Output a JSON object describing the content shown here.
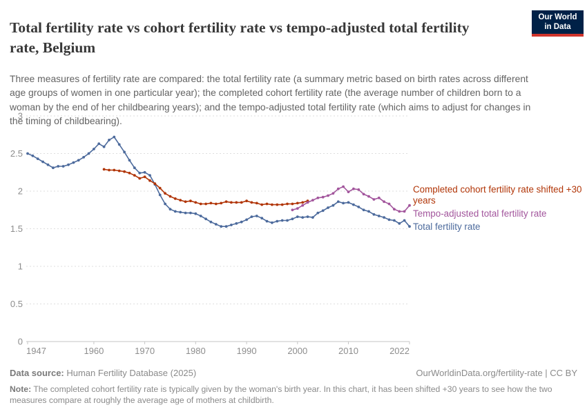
{
  "header": {
    "title": "Total fertility rate vs cohort fertility rate vs tempo-adjusted total fertility rate, Belgium",
    "subtitle": "Three measures of fertility rate are compared: the total fertility rate (a summary metric based on birth rates across different age groups of women in one particular year); the completed cohort fertility rate (the average number of children born to a woman by the end of her childbearing years); and the tempo-adjusted total fertility rate (which aims to adjust for changes in the timing of childbearing).",
    "logo": {
      "line1": "Our World",
      "line2": "in Data",
      "bg_color": "#002147",
      "bar_color": "#D0342C"
    }
  },
  "chart_data": {
    "type": "line",
    "title": "Total fertility rate vs cohort fertility rate vs tempo-adjusted total fertility rate, Belgium",
    "xlabel": "",
    "ylabel": "",
    "x_ticks": [
      1947,
      1960,
      1970,
      1980,
      1990,
      2000,
      2010,
      2022
    ],
    "x_range": [
      1947,
      2022
    ],
    "y_ticks": [
      0,
      0.5,
      1,
      1.5,
      2,
      2.5,
      3
    ],
    "y_range": [
      0,
      3
    ],
    "grid": "dashed-horizontal",
    "legend_position": "right-of-lines",
    "series": [
      {
        "id": "total-fertility-rate",
        "name": "Total fertility rate",
        "color": "#4C6A9C",
        "years": [
          1947,
          1948,
          1949,
          1950,
          1951,
          1952,
          1953,
          1954,
          1955,
          1956,
          1957,
          1958,
          1959,
          1960,
          1961,
          1962,
          1963,
          1964,
          1965,
          1966,
          1967,
          1968,
          1969,
          1970,
          1971,
          1972,
          1973,
          1974,
          1975,
          1976,
          1977,
          1978,
          1979,
          1980,
          1981,
          1982,
          1983,
          1984,
          1985,
          1986,
          1987,
          1988,
          1989,
          1990,
          1991,
          1992,
          1993,
          1994,
          1995,
          1996,
          1997,
          1998,
          1999,
          2000,
          2001,
          2002,
          2003,
          2004,
          2005,
          2006,
          2007,
          2008,
          2009,
          2010,
          2011,
          2012,
          2013,
          2014,
          2015,
          2016,
          2017,
          2018,
          2019,
          2020,
          2021,
          2022
        ],
        "values": [
          2.5,
          2.47,
          2.43,
          2.39,
          2.35,
          2.31,
          2.33,
          2.33,
          2.35,
          2.38,
          2.41,
          2.45,
          2.5,
          2.56,
          2.63,
          2.59,
          2.68,
          2.72,
          2.62,
          2.52,
          2.41,
          2.31,
          2.24,
          2.25,
          2.21,
          2.09,
          1.95,
          1.83,
          1.76,
          1.73,
          1.72,
          1.71,
          1.71,
          1.7,
          1.67,
          1.63,
          1.59,
          1.56,
          1.53,
          1.53,
          1.55,
          1.57,
          1.59,
          1.62,
          1.66,
          1.67,
          1.64,
          1.6,
          1.58,
          1.6,
          1.61,
          1.61,
          1.63,
          1.66,
          1.65,
          1.66,
          1.65,
          1.71,
          1.74,
          1.78,
          1.81,
          1.86,
          1.84,
          1.85,
          1.82,
          1.79,
          1.75,
          1.73,
          1.69,
          1.67,
          1.65,
          1.62,
          1.61,
          1.57,
          1.61,
          1.53
        ]
      },
      {
        "id": "completed-cohort-fertility-rate-shifted",
        "name": "Completed cohort fertility rate shifted +30 years",
        "color": "#B13507",
        "years": [
          1962,
          1963,
          1964,
          1965,
          1966,
          1967,
          1968,
          1969,
          1970,
          1971,
          1972,
          1973,
          1974,
          1975,
          1976,
          1977,
          1978,
          1979,
          1980,
          1981,
          1982,
          1983,
          1984,
          1985,
          1986,
          1987,
          1988,
          1989,
          1990,
          1991,
          1992,
          1993,
          1994,
          1995,
          1996,
          1997,
          1998,
          1999,
          2000,
          2001,
          2002
        ],
        "values": [
          2.29,
          2.28,
          2.28,
          2.27,
          2.26,
          2.24,
          2.21,
          2.17,
          2.19,
          2.14,
          2.1,
          2.04,
          1.97,
          1.93,
          1.9,
          1.88,
          1.86,
          1.87,
          1.85,
          1.83,
          1.83,
          1.84,
          1.83,
          1.84,
          1.86,
          1.85,
          1.85,
          1.85,
          1.87,
          1.85,
          1.84,
          1.82,
          1.83,
          1.82,
          1.82,
          1.82,
          1.83,
          1.83,
          1.84,
          1.85,
          1.87
        ]
      },
      {
        "id": "tempo-adjusted-total-fertility-rate",
        "name": "Tempo-adjusted total fertility rate",
        "color": "#A2559C",
        "years": [
          1999,
          2000,
          2001,
          2002,
          2003,
          2004,
          2005,
          2006,
          2007,
          2008,
          2009,
          2010,
          2011,
          2012,
          2013,
          2014,
          2015,
          2016,
          2017,
          2018,
          2019,
          2020,
          2021,
          2022
        ],
        "values": [
          1.75,
          1.77,
          1.81,
          1.85,
          1.88,
          1.91,
          1.92,
          1.94,
          1.97,
          2.03,
          2.06,
          1.99,
          2.03,
          2.02,
          1.96,
          1.93,
          1.89,
          1.91,
          1.86,
          1.83,
          1.76,
          1.73,
          1.73,
          1.81
        ]
      }
    ]
  },
  "footer": {
    "datasource_label": "Data source:",
    "datasource_value": " Human Fertility Database (2025)",
    "link": "OurWorldinData.org/fertility-rate | CC BY",
    "note_label": "Note:",
    "note_value": " The completed cohort fertility rate is typically given by the woman's birth year. In this chart, it has been shifted +30 years to see how the two measures compare at roughly the average age of mothers at childbirth."
  }
}
